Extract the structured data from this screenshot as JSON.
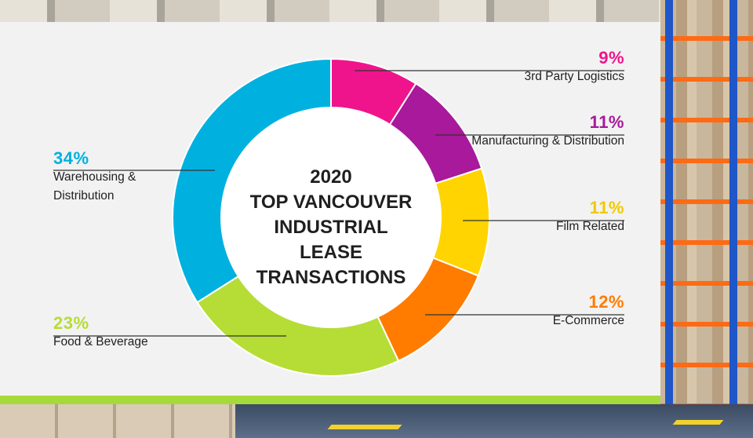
{
  "chart_data": {
    "type": "pie",
    "title": "2020\nTOP VANCOUVER\nINDUSTRIAL\nLEASE\nTRANSACTIONS",
    "slices": [
      {
        "label": "3rd Party Logistics",
        "value": 9,
        "display": "9%",
        "color": "#f0148c"
      },
      {
        "label": "Manufacturing & Distribution",
        "value": 11,
        "display": "11%",
        "color": "#a8199b"
      },
      {
        "label": "Film Related",
        "value": 11,
        "display": "11%",
        "color": "#ffd400"
      },
      {
        "label": "E-Commerce",
        "value": 12,
        "display": "12%",
        "color": "#ff7c00"
      },
      {
        "label": "Food & Beverage",
        "value": 23,
        "display": "23%",
        "color": "#b5dd36"
      },
      {
        "label": "Warehousing & Distribution",
        "value": 34,
        "display": "34%",
        "color": "#00b1e0"
      }
    ],
    "display_labels": [
      "3rd Party Logistics",
      "Manufacturing & Distribution",
      "Film Related",
      "E-Commerce",
      "Food & Beverage",
      "Warehousing &\nDistribution"
    ]
  }
}
